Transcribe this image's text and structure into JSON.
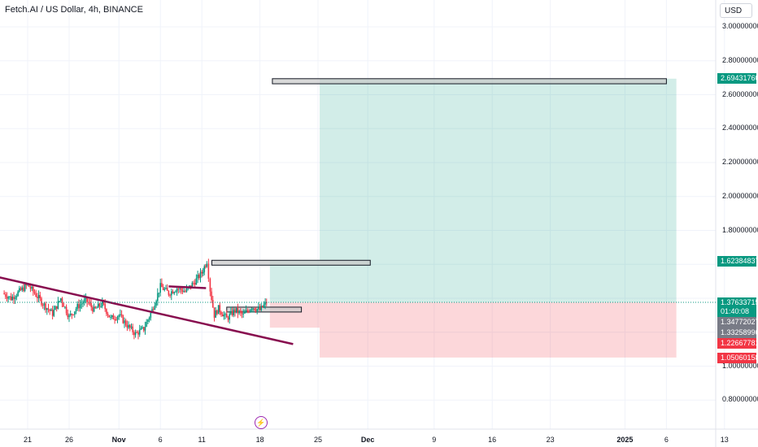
{
  "header": {
    "title": "Fetch.AI / US Dollar, 4h, BINANCE",
    "currency": "USD"
  },
  "events": {
    "flash_icon": "lightning-icon"
  },
  "price_axis": {
    "ticks": [
      {
        "value": 3.0,
        "label": "3.00000000"
      },
      {
        "value": 2.8,
        "label": "2.80000000"
      },
      {
        "value": 2.6,
        "label": "2.60000000"
      },
      {
        "value": 2.4,
        "label": "2.40000000"
      },
      {
        "value": 2.2,
        "label": "2.20000000"
      },
      {
        "value": 2.0,
        "label": "2.00000000"
      },
      {
        "value": 1.8,
        "label": "1.80000000"
      },
      {
        "value": 1.0,
        "label": "1.00000000"
      },
      {
        "value": 0.8,
        "label": "0.80000000"
      }
    ],
    "badges": [
      {
        "label": "2.69431760",
        "color": "#089981",
        "value": 2.6943176
      },
      {
        "label": "1.62384837",
        "color": "#089981",
        "value": 1.62384837
      },
      {
        "label": "1.37633715",
        "sub": "01:40:08",
        "color": "#089981",
        "value": 1.37633715
      },
      {
        "label": "1.34772027",
        "color": "#787b86",
        "value": 1.34772027
      },
      {
        "label": "1.33258996",
        "color": "#787b86",
        "value": 1.33258996
      },
      {
        "label": "1.22667781",
        "color": "#f23645",
        "value": 1.22667781
      },
      {
        "label": "1.05060158",
        "color": "#f23645",
        "value": 1.05060158
      }
    ]
  },
  "time_axis": {
    "ticks": [
      {
        "label": "21",
        "day": 0
      },
      {
        "label": "26",
        "day": 5
      },
      {
        "label": "Nov",
        "day": 11,
        "bold": true
      },
      {
        "label": "6",
        "day": 16
      },
      {
        "label": "11",
        "day": 21
      },
      {
        "label": "18",
        "day": 28
      },
      {
        "label": "25",
        "day": 35
      },
      {
        "label": "Dec",
        "day": 41,
        "bold": true
      },
      {
        "label": "9",
        "day": 49
      },
      {
        "label": "16",
        "day": 56
      },
      {
        "label": "23",
        "day": 63
      },
      {
        "label": "2025",
        "day": 72,
        "bold": true
      },
      {
        "label": "6",
        "day": 77
      },
      {
        "label": "13",
        "day": 84
      }
    ]
  },
  "chart_data": {
    "type": "candlestick",
    "symbol": "Fetch.AI / US Dollar",
    "interval": "4h",
    "exchange": "BINANCE",
    "ylim": [
      0.75,
      3.08
    ],
    "last_price": 1.37633715,
    "colors": {
      "up": "#089981",
      "down": "#f23645",
      "trendline": "#880e4f"
    },
    "closes_daily": [
      {
        "day": -3,
        "close": 1.43
      },
      {
        "day": -2,
        "close": 1.4
      },
      {
        "day": -1,
        "close": 1.44
      },
      {
        "day": 0,
        "close": 1.48
      },
      {
        "day": 1,
        "close": 1.42
      },
      {
        "day": 2,
        "close": 1.36
      },
      {
        "day": 3,
        "close": 1.31
      },
      {
        "day": 4,
        "close": 1.4
      },
      {
        "day": 5,
        "close": 1.29
      },
      {
        "day": 6,
        "close": 1.35
      },
      {
        "day": 7,
        "close": 1.39
      },
      {
        "day": 8,
        "close": 1.33
      },
      {
        "day": 9,
        "close": 1.37
      },
      {
        "day": 10,
        "close": 1.28
      },
      {
        "day": 11,
        "close": 1.3
      },
      {
        "day": 12,
        "close": 1.24
      },
      {
        "day": 13,
        "close": 1.19
      },
      {
        "day": 14,
        "close": 1.22
      },
      {
        "day": 15,
        "close": 1.33
      },
      {
        "day": 16,
        "close": 1.47
      },
      {
        "day": 17,
        "close": 1.43
      },
      {
        "day": 18,
        "close": 1.46
      },
      {
        "day": 19,
        "close": 1.44
      },
      {
        "day": 20,
        "close": 1.49
      },
      {
        "day": 21,
        "close": 1.55
      },
      {
        "day": 21.6,
        "close": 1.62
      },
      {
        "day": 22,
        "close": 1.45
      },
      {
        "day": 22.5,
        "close": 1.3
      },
      {
        "day": 23,
        "close": 1.34
      },
      {
        "day": 24,
        "close": 1.28
      },
      {
        "day": 25,
        "close": 1.33
      },
      {
        "day": 26,
        "close": 1.3
      },
      {
        "day": 27,
        "close": 1.35
      },
      {
        "day": 28,
        "close": 1.33
      },
      {
        "day": 28.8,
        "close": 1.376
      }
    ],
    "trendlines": [
      {
        "from": {
          "day": -4,
          "price": 1.53
        },
        "to": {
          "day": 32,
          "price": 1.13
        }
      },
      {
        "from": {
          "day": 17,
          "price": 1.47
        },
        "to": {
          "day": 21.5,
          "price": 1.46
        }
      }
    ],
    "zones": [
      {
        "from_day": 29.5,
        "to_day": 77,
        "top": 2.6943176,
        "bottom": 2.6643176
      },
      {
        "from_day": 22.2,
        "to_day": 41.3,
        "top": 1.62384837,
        "bottom": 1.59684837
      },
      {
        "from_day": 24,
        "to_day": 33,
        "top": 1.34772027,
        "bottom": 1.33258996
      }
    ],
    "positions": [
      {
        "from_day": 29.2,
        "to_day": 35.2,
        "entry": 1.376,
        "target": 1.62384837,
        "stop": 1.22667781
      },
      {
        "from_day": 35.2,
        "to_day": 78.2,
        "entry": 1.376,
        "target": 2.6943176,
        "stop": 1.05060158
      }
    ]
  }
}
